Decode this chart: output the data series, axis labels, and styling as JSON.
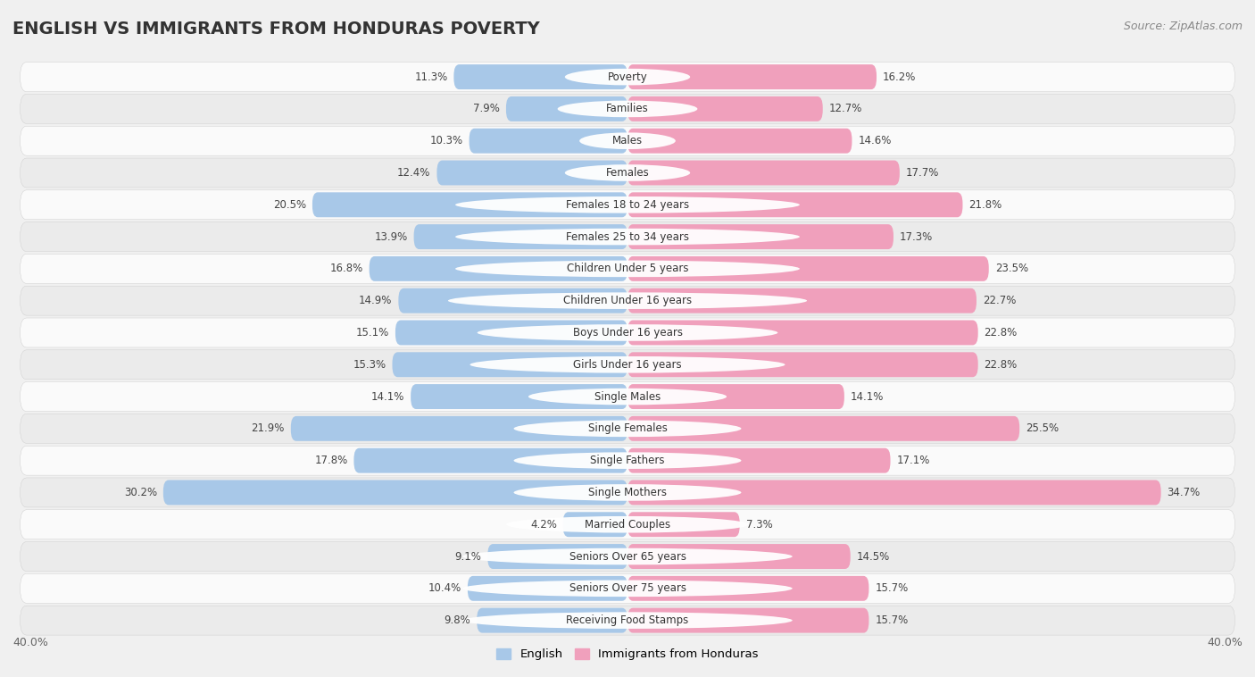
{
  "title": "ENGLISH VS IMMIGRANTS FROM HONDURAS POVERTY",
  "source": "Source: ZipAtlas.com",
  "categories": [
    "Poverty",
    "Families",
    "Males",
    "Females",
    "Females 18 to 24 years",
    "Females 25 to 34 years",
    "Children Under 5 years",
    "Children Under 16 years",
    "Boys Under 16 years",
    "Girls Under 16 years",
    "Single Males",
    "Single Females",
    "Single Fathers",
    "Single Mothers",
    "Married Couples",
    "Seniors Over 65 years",
    "Seniors Over 75 years",
    "Receiving Food Stamps"
  ],
  "english_values": [
    11.3,
    7.9,
    10.3,
    12.4,
    20.5,
    13.9,
    16.8,
    14.9,
    15.1,
    15.3,
    14.1,
    21.9,
    17.8,
    30.2,
    4.2,
    9.1,
    10.4,
    9.8
  ],
  "honduras_values": [
    16.2,
    12.7,
    14.6,
    17.7,
    21.8,
    17.3,
    23.5,
    22.7,
    22.8,
    22.8,
    14.1,
    25.5,
    17.1,
    34.7,
    7.3,
    14.5,
    15.7,
    15.7
  ],
  "english_color": "#a8c8e8",
  "honduras_color": "#f0a0bc",
  "background_color": "#f0f0f0",
  "row_color_light": "#fafafa",
  "row_color_dark": "#ebebeb",
  "xlim": 40.0,
  "legend_english": "English",
  "legend_honduras": "Immigrants from Honduras",
  "title_fontsize": 14,
  "source_fontsize": 9,
  "bar_height": 0.78,
  "value_fontsize": 8.5,
  "cat_fontsize": 8.5
}
